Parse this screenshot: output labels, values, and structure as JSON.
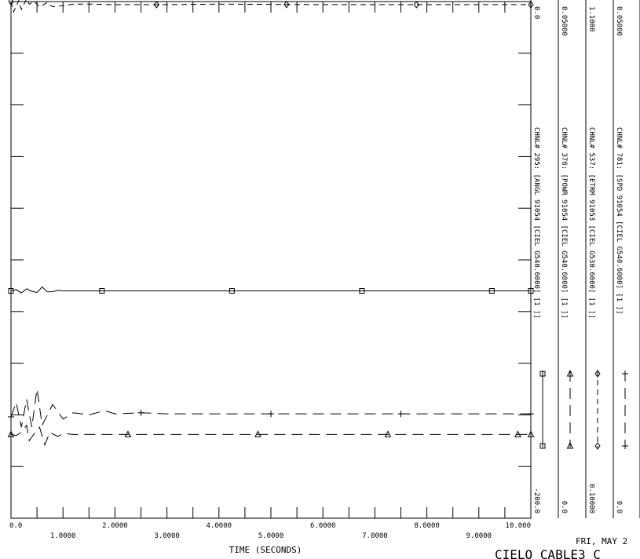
{
  "chart_data": {
    "type": "line",
    "xlabel": "TIME (SECONDS)",
    "xlim": [
      0.0,
      10.0
    ],
    "x_ticks_upper": [
      "0.0",
      "2.0000",
      "4.0000",
      "6.0000",
      "8.0000",
      "10.000"
    ],
    "x_ticks_lower": [
      "1.0000",
      "3.0000",
      "5.0000",
      "7.0000",
      "9.0000"
    ],
    "series": [
      {
        "name": "CHNL# 295: [ANGL 91054 [CIEL G540.6000] [1 ]]",
        "marker": "square",
        "dash": "solid",
        "axis_min": "-200.0",
        "axis_max": "0.0",
        "x": [
          0,
          0.1,
          0.2,
          0.3,
          0.4,
          0.5,
          0.6,
          0.7,
          0.8,
          0.9,
          1.0,
          1.2,
          1.5,
          2.0,
          3.0,
          4.0,
          6.0,
          8.0,
          10.0
        ],
        "y": [
          -112.0,
          -111.5,
          -112.8,
          -111.2,
          -112.2,
          -112.6,
          -110.5,
          -112.4,
          -112.3,
          -111.8,
          -112.0,
          -112.0,
          -112.0,
          -112.0,
          -112.0,
          -112.0,
          -112.0,
          -112.0,
          -112.0
        ]
      },
      {
        "name": "CHNL# 376: [POWR 91054 [CIEL G540.6000] [1 ]]",
        "marker": "triangle",
        "dash": "long-dash",
        "axis_min": "0.0",
        "axis_max": "0.05000",
        "x": [
          0,
          0.1,
          0.2,
          0.3,
          0.35,
          0.45,
          0.55,
          0.65,
          0.75,
          0.9,
          1.0,
          1.2,
          1.5,
          2.0,
          3.0,
          4.0,
          6.0,
          8.0,
          10.0
        ],
        "y": [
          0.0081,
          0.008,
          0.0083,
          0.009,
          0.0075,
          0.0082,
          0.0088,
          0.0071,
          0.0083,
          0.0079,
          0.0082,
          0.0081,
          0.0081,
          0.0081,
          0.0081,
          0.0081,
          0.0081,
          0.0081,
          0.0081
        ]
      },
      {
        "name": "CHNL# 537: [ETRM 91053 [CIEL G530.6000] [1 ]]",
        "marker": "diamond",
        "dash": "short-dash",
        "axis_min": "0.10000",
        "axis_max": "1.1000",
        "x": [
          0,
          0.05,
          0.15,
          0.2,
          0.3,
          0.35,
          0.45,
          0.55,
          0.7,
          0.8,
          1.0,
          1.2,
          1.5,
          2.0,
          3.0,
          4.0,
          6.0,
          8.0,
          10.0
        ],
        "y": [
          1.1,
          1.08,
          1.102,
          1.085,
          1.105,
          1.095,
          1.1,
          1.09,
          1.098,
          1.09,
          1.092,
          1.095,
          1.095,
          1.094,
          1.094,
          1.095,
          1.094,
          1.094,
          1.094
        ]
      },
      {
        "name": "CHNL# 781: [SPD 91054 [CIEL G540.6000] [1 ]]",
        "marker": "plus",
        "dash": "long-dash",
        "axis_min": "0.0",
        "axis_max": "0.05000",
        "x": [
          0,
          0.1,
          0.2,
          0.3,
          0.4,
          0.5,
          0.6,
          0.8,
          1.0,
          1.2,
          1.5,
          1.8,
          2.0,
          2.5,
          3.0,
          4.0,
          6.0,
          8.0,
          10.0
        ],
        "y": [
          0.0098,
          0.0112,
          0.0088,
          0.0115,
          0.0088,
          0.0125,
          0.009,
          0.011,
          0.0096,
          0.0102,
          0.01,
          0.0104,
          0.0101,
          0.0102,
          0.0101,
          0.0101,
          0.0101,
          0.0101,
          0.0101
        ]
      }
    ]
  },
  "footer": {
    "date": "FRI, MAY 2",
    "title": "CIELO CABLE3 C"
  }
}
